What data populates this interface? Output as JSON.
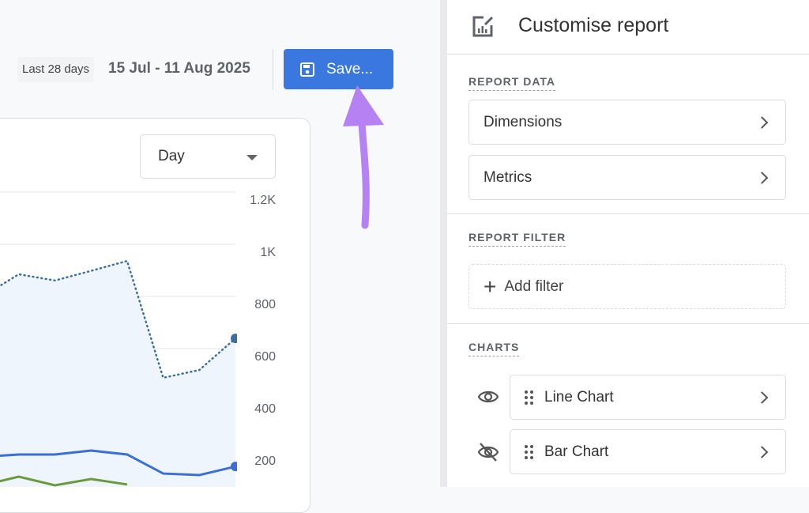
{
  "header": {
    "range_label": "Last 28 days",
    "date_range": "15 Jul - 11 Aug 2025",
    "save_label": "Save...",
    "save_icon": "floppy-disk-icon"
  },
  "chart_card": {
    "granularity": "Day"
  },
  "chart_data": {
    "type": "line",
    "y_ticks": [
      "200",
      "400",
      "600",
      "800",
      "1K",
      "1.2K"
    ],
    "ylim": [
      0,
      1200
    ],
    "grid": true,
    "series": [
      {
        "style": "dotted",
        "color": "#3c6e9e",
        "fill": "#eef5fd",
        "values": [
          800,
          885,
          861,
          898,
          936,
          488,
          518,
          639
        ]
      },
      {
        "style": "solid",
        "color": "#3b6fd4",
        "values": [
          185,
          194,
          194,
          209,
          194,
          121,
          115,
          148
        ]
      },
      {
        "style": "solid",
        "color": "#6a9a3c",
        "values": [
          76,
          109,
          76,
          100,
          79,
          null,
          null,
          null
        ]
      }
    ]
  },
  "annotation": {
    "arrow_color": "#b681f2"
  },
  "panel": {
    "title": "Customise report",
    "report_data": {
      "label": "REPORT DATA",
      "items": [
        "Dimensions",
        "Metrics"
      ]
    },
    "report_filter": {
      "label": "REPORT FILTER",
      "add_label": "Add filter"
    },
    "charts": {
      "label": "CHARTS",
      "items": [
        {
          "label": "Line Chart",
          "visible": true
        },
        {
          "label": "Bar Chart",
          "visible": false
        }
      ]
    }
  }
}
